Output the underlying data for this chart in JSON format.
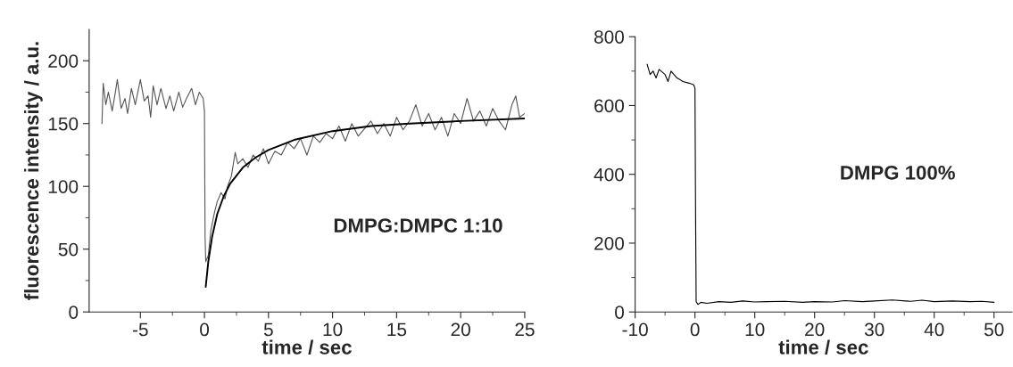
{
  "chart_data": [
    {
      "type": "line",
      "xlabel": "time / sec",
      "ylabel": "fluorescence intensity / a.u.",
      "annotations": [
        "DMPG:DMPC 1:10"
      ],
      "xlim": [
        -9,
        25
      ],
      "ylim": [
        0,
        225
      ],
      "xticks": [
        -5,
        0,
        5,
        10,
        15,
        20,
        25
      ],
      "yticks": [
        0,
        50,
        100,
        150,
        200
      ],
      "grid": false,
      "legend": false,
      "series": [
        {
          "color": "#555555",
          "x": [
            -8,
            -7.9,
            -7.7,
            -7.5,
            -7.2,
            -7,
            -6.8,
            -6.5,
            -6.2,
            -6,
            -5.7,
            -5.4,
            -5,
            -4.7,
            -4.4,
            -4.2,
            -4,
            -3.7,
            -3.4,
            -3,
            -2.7,
            -2.4,
            -2,
            -1.7,
            -1.4,
            -1,
            -0.7,
            -0.4,
            -0.1,
            0,
            0.05,
            0.1,
            0.3,
            0.5,
            0.8,
            1.0,
            1.3,
            1.6,
            1.8,
            2.1,
            2.4,
            2.6,
            3,
            3.4,
            3.8,
            4.2,
            4.6,
            5,
            5.5,
            6,
            6.5,
            7,
            7.5,
            8,
            8.5,
            9,
            9.5,
            10,
            10.5,
            11,
            11.5,
            12,
            13,
            13.5,
            14,
            14.5,
            15,
            15.5,
            16,
            16.5,
            17,
            17.5,
            18,
            18.5,
            19,
            19.5,
            20,
            20.5,
            21,
            21.5,
            22,
            22.5,
            23,
            23.5,
            24,
            24.3,
            24.6,
            25
          ],
          "values": [
            150,
            182,
            165,
            175,
            160,
            172,
            185,
            162,
            170,
            158,
            178,
            165,
            185,
            168,
            172,
            155,
            180,
            165,
            178,
            162,
            172,
            160,
            175,
            163,
            170,
            178,
            165,
            175,
            170,
            160,
            60,
            40,
            45,
            65,
            80,
            88,
            95,
            90,
            100,
            108,
            127,
            118,
            122,
            115,
            125,
            120,
            130,
            118,
            128,
            125,
            135,
            130,
            138,
            125,
            140,
            135,
            142,
            138,
            148,
            136,
            150,
            140,
            152,
            142,
            150,
            140,
            155,
            145,
            152,
            165,
            148,
            158,
            145,
            155,
            140,
            158,
            150,
            170,
            152,
            160,
            148,
            162,
            152,
            145,
            165,
            172,
            155,
            158
          ]
        },
        {
          "color": "#000000",
          "x": [
            0.1,
            0.3,
            0.6,
            1,
            1.5,
            2,
            3,
            4,
            5,
            7,
            10,
            13,
            16,
            20,
            25
          ],
          "values": [
            20,
            40,
            60,
            78,
            92,
            102,
            115,
            123,
            129,
            137,
            144,
            148,
            150,
            152,
            154
          ]
        }
      ]
    },
    {
      "type": "line",
      "xlabel": "time / sec",
      "annotations": [
        "DMPG 100%"
      ],
      "xlim": [
        -10,
        53
      ],
      "ylim": [
        0,
        800
      ],
      "xticks": [
        -10,
        0,
        10,
        20,
        30,
        40,
        50
      ],
      "yticks": [
        0,
        200,
        400,
        600,
        800
      ],
      "grid": false,
      "legend": false,
      "series": [
        {
          "color": "#000000",
          "x": [
            -8,
            -7.5,
            -7,
            -6.5,
            -6,
            -5,
            -4.5,
            -4,
            -3,
            -2,
            -1,
            -0.2,
            0,
            0.1,
            0.2,
            0.5,
            1,
            2,
            4,
            6,
            8,
            10,
            12,
            15,
            18,
            20,
            23,
            25,
            28,
            30,
            33,
            36,
            38,
            40,
            43,
            46,
            48,
            50
          ],
          "values": [
            720,
            690,
            700,
            680,
            705,
            690,
            670,
            700,
            680,
            670,
            665,
            660,
            650,
            300,
            30,
            22,
            28,
            25,
            30,
            28,
            32,
            29,
            30,
            31,
            28,
            30,
            29,
            33,
            30,
            32,
            35,
            31,
            34,
            30,
            32,
            30,
            31,
            28
          ]
        }
      ]
    }
  ]
}
